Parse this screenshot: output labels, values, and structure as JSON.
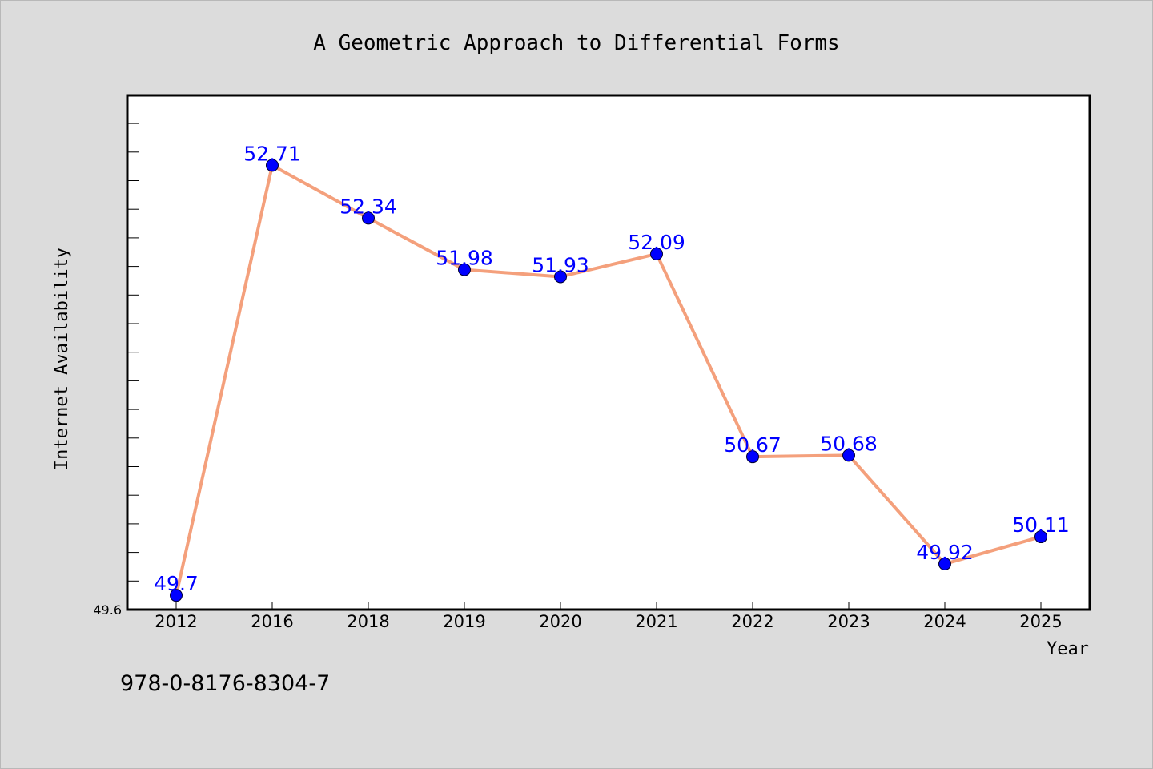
{
  "chart_data": {
    "type": "line",
    "title": "A Geometric Approach to Differential Forms",
    "xlabel": "Year",
    "ylabel": "Internet Availability",
    "categories": [
      "2012",
      "2016",
      "2018",
      "2019",
      "2020",
      "2021",
      "2022",
      "2023",
      "2024",
      "2025"
    ],
    "values": [
      49.7,
      52.71,
      52.34,
      51.98,
      51.93,
      52.09,
      50.67,
      50.68,
      49.92,
      50.11
    ],
    "data_labels": [
      "49.7",
      "52.71",
      "52.34",
      "51.98",
      "51.93",
      "52.09",
      "50.67",
      "50.68",
      "49.92",
      "50.11"
    ],
    "ylim": [
      49.6,
      53.2
    ],
    "ytick_labels": [
      "49.6"
    ],
    "grid": false,
    "line_color": "#f4a07c",
    "marker_color": "#0000ff",
    "label_color": "#0000ff",
    "background": "#dcdcdc"
  },
  "footer": {
    "isbn": "978-0-8176-8304-7"
  }
}
